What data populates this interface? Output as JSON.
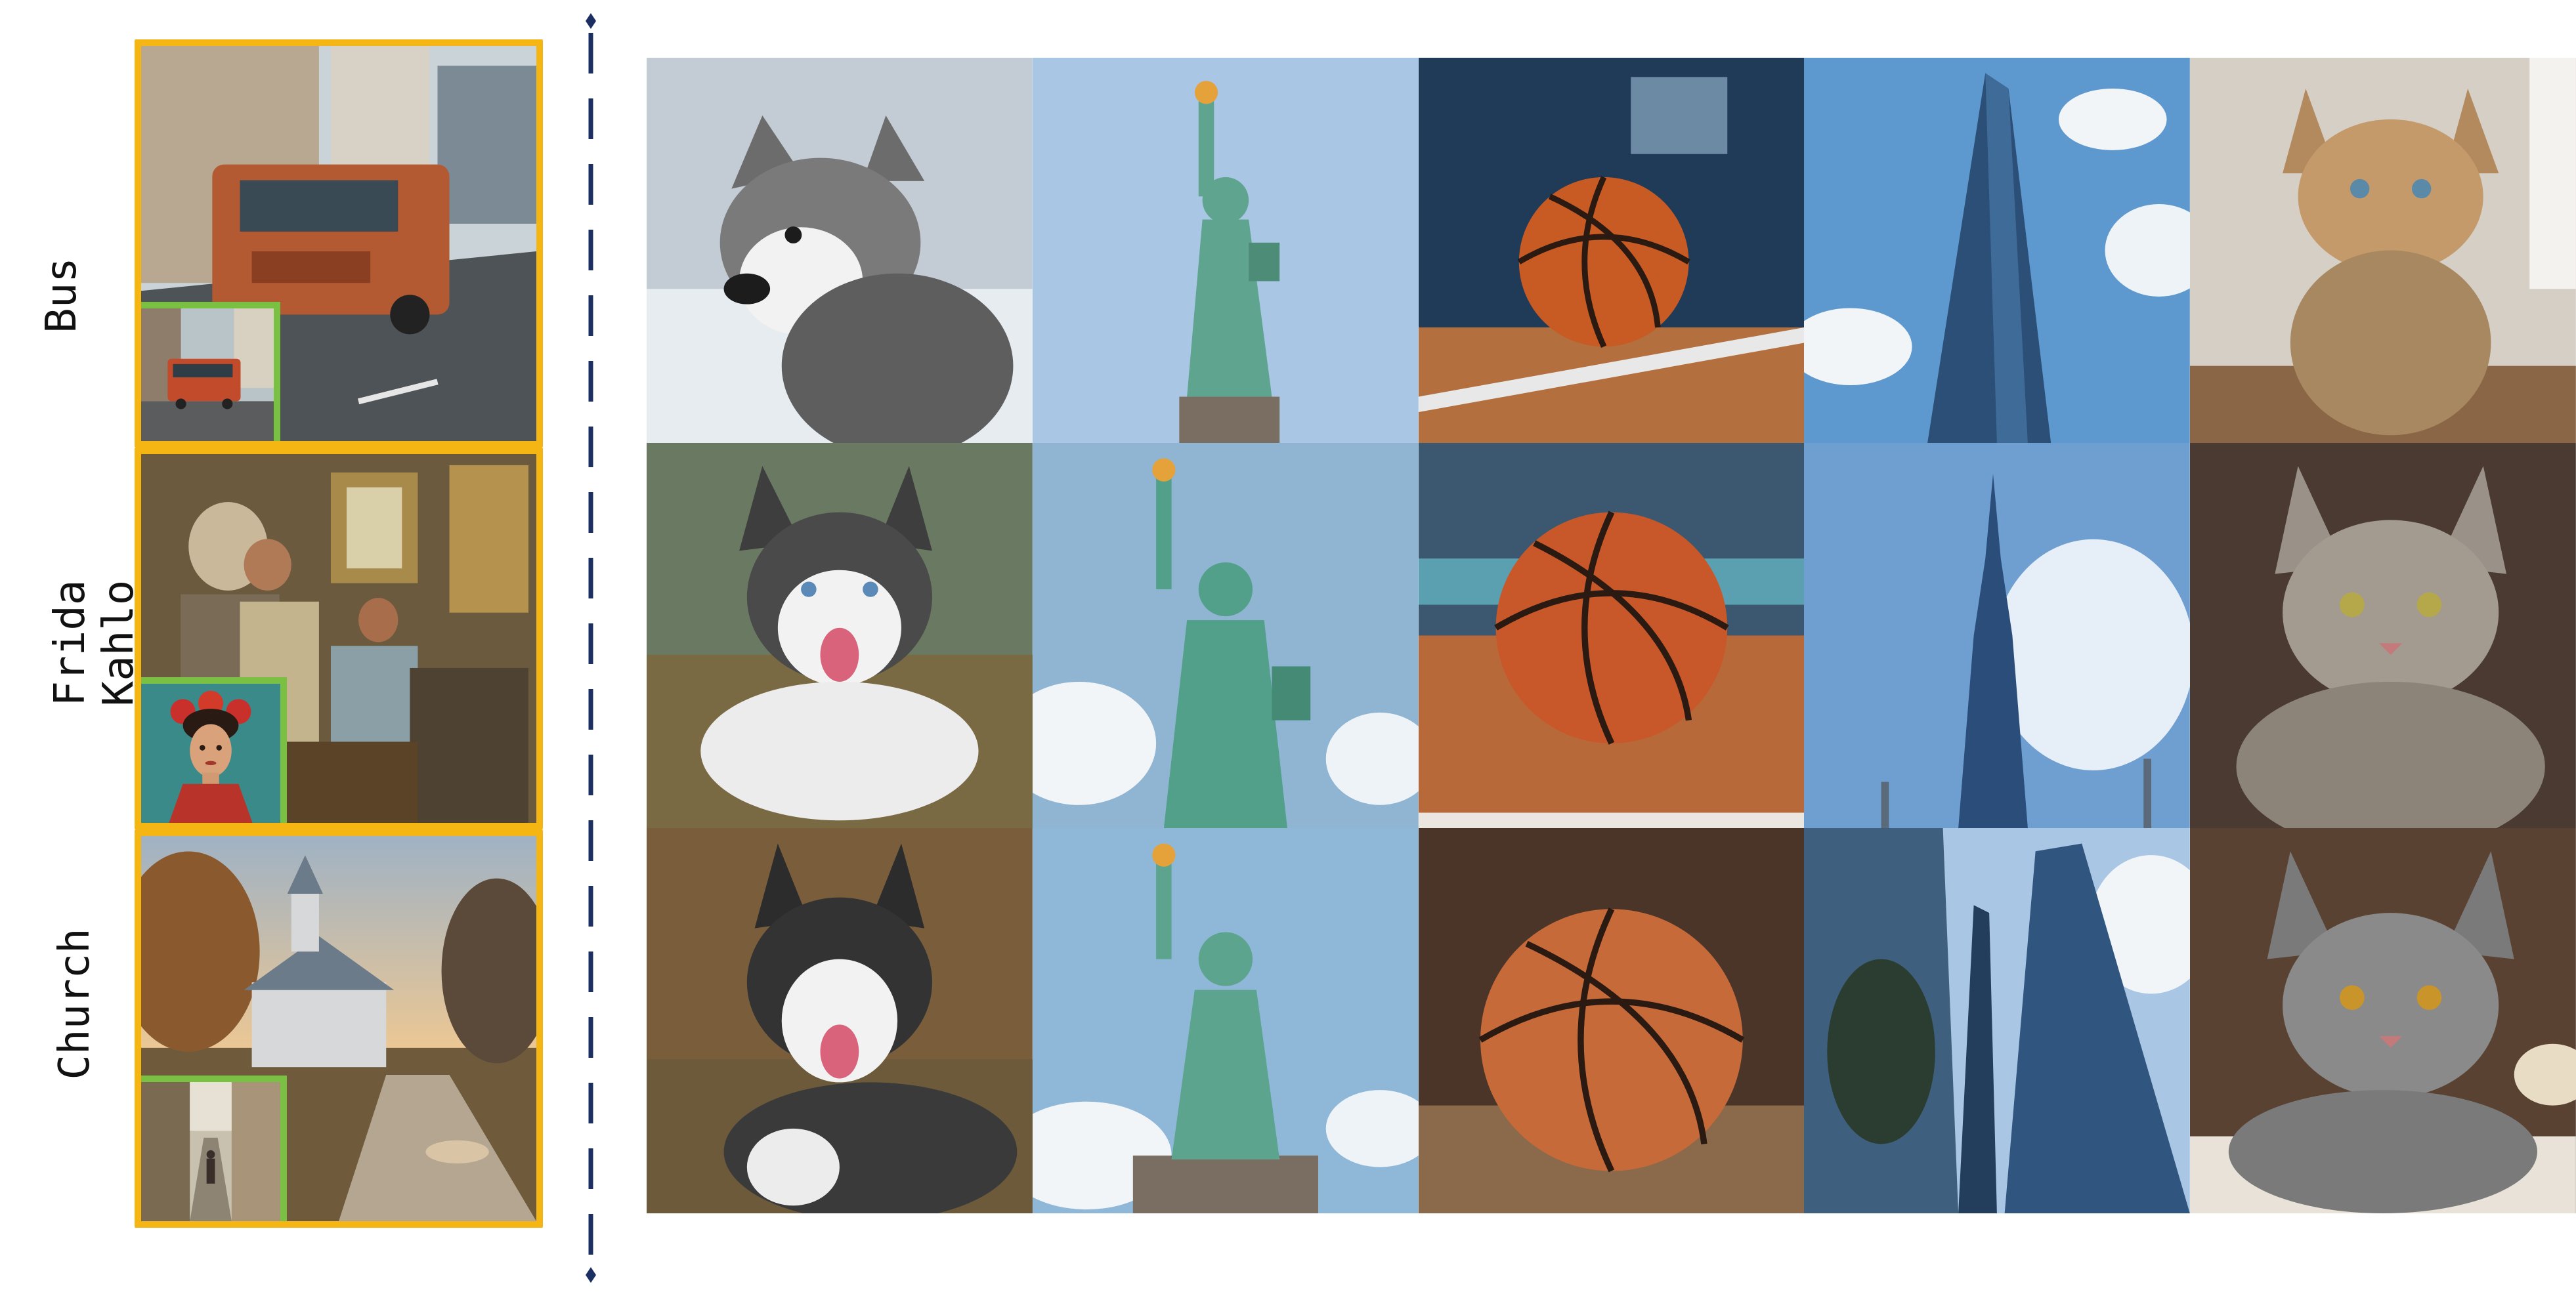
{
  "rows": [
    {
      "label": "Bus",
      "reference": "orange truck parked on a city street",
      "inset": "orange bus on a street"
    },
    {
      "label": "Frida Kahlo",
      "label_lines": [
        "Frida",
        "Kahlo"
      ],
      "reference": "classical painting of people at a table",
      "inset": "portrait of Frida Kahlo with flowers in hair"
    },
    {
      "label": "Church",
      "reference": "white church at sunset beside a wet road",
      "inset": "narrow old street with a person"
    }
  ],
  "columns": [
    "husky dog",
    "Statue of Liberty",
    "basketball",
    "glass skyscraper",
    "tabby cat"
  ],
  "colors": {
    "reference_border": "#f5b614",
    "inset_border": "#79c043",
    "divider": "#1b2f63",
    "label_text": "#111111"
  }
}
